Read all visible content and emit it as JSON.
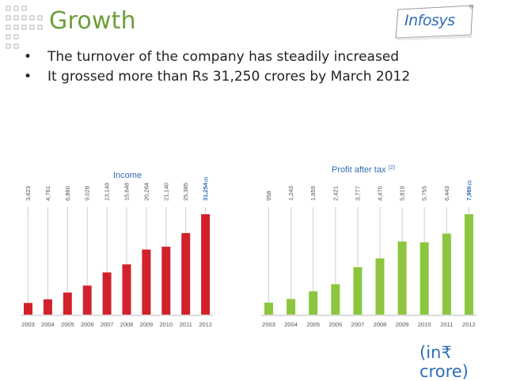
{
  "slide": {
    "title": "Growth",
    "bullets": [
      "The turnover of the company has steadily increased",
      "It grossed more than Rs 31,250 crores by March 2012"
    ],
    "logo": {
      "text": "Infosys",
      "reg": "®"
    },
    "unit_note": "(in₹ crore)",
    "colors": {
      "title": "#6e9e3a",
      "logo": "#2e6db5",
      "income": "#d1222c",
      "profit": "#8cc63f"
    }
  },
  "chart_data": [
    {
      "type": "bar",
      "title": "Income",
      "categories": [
        "2003",
        "2004",
        "2005",
        "2006",
        "2007",
        "2008",
        "2009",
        "2010",
        "2011",
        "2012"
      ],
      "values": [
        3623,
        4761,
        6860,
        9028,
        13149,
        15648,
        20264,
        21140,
        25385,
        31254
      ],
      "labels": [
        "3,623",
        "4,761",
        "6,860",
        "9,028",
        "13,149",
        "15,648",
        "20,264",
        "21,140",
        "25,385",
        "31,254"
      ],
      "highlight_label_suffix": "(1)",
      "color": "#d1222c",
      "highlight_color": "#2e6db5",
      "ylim": [
        0,
        31254
      ],
      "grid": false
    },
    {
      "type": "bar",
      "title": "Profit after tax",
      "title_note": "(2)",
      "categories": [
        "2003",
        "2004",
        "2005",
        "2006",
        "2007",
        "2008",
        "2009",
        "2010",
        "2011",
        "2012"
      ],
      "values": [
        958,
        1243,
        1859,
        2421,
        3777,
        4470,
        5819,
        5755,
        6443,
        7986
      ],
      "labels": [
        "958",
        "1,243",
        "1,859",
        "2,421",
        "3,777",
        "4,470",
        "5,819",
        "5,755",
        "6,443",
        "7,986"
      ],
      "highlight_label_suffix": "(1)",
      "color": "#8cc63f",
      "highlight_color": "#2e6db5",
      "ylim": [
        0,
        7986
      ],
      "grid": false
    }
  ]
}
